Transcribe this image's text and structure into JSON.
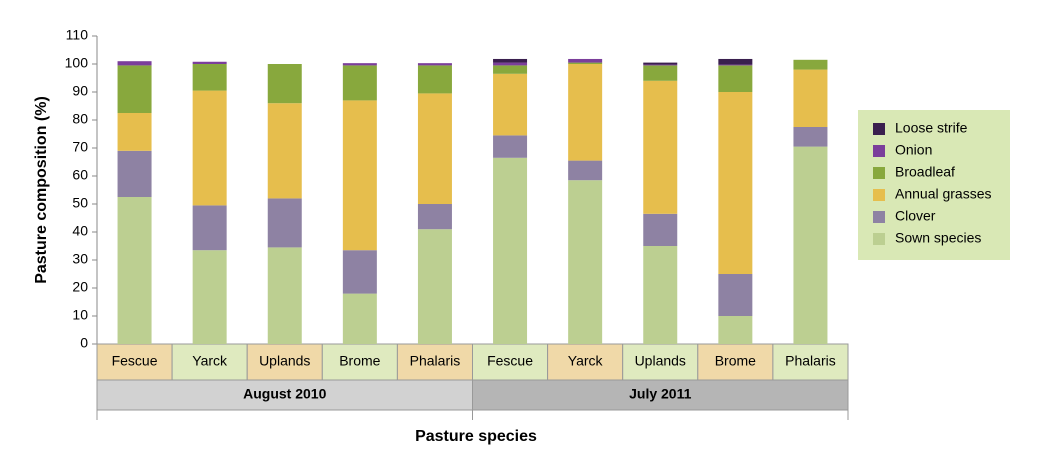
{
  "chart_data": {
    "type": "stacked-bar",
    "y_axis_label": "Pasture composition (%)",
    "x_axis_label": "Pasture species",
    "categories": [
      "Fescue",
      "Yarck",
      "Uplands",
      "Brome",
      "Phalaris",
      "Fescue",
      "Yarck",
      "Uplands",
      "Brome",
      "Phalaris"
    ],
    "category_colors": [
      "#f0d9a8",
      "#dfeabf",
      "#f0d9a8",
      "#dfeabf",
      "#f0d9a8",
      "#dfeabf",
      "#f0d9a8",
      "#dfeabf",
      "#f0d9a8",
      "#dfeabf"
    ],
    "groups": [
      {
        "name": "August 2010",
        "color": "#d2d2d2"
      },
      {
        "name": "July 2011",
        "color": "#b5b5b5"
      }
    ],
    "series": [
      {
        "name": "Sown species",
        "color": "#bccf91",
        "values": [
          52.5,
          33.5,
          34.5,
          18,
          41,
          66.5,
          58.5,
          35,
          10,
          70.5
        ]
      },
      {
        "name": "Clover",
        "color": "#8e82a3",
        "values": [
          16.5,
          16,
          17.5,
          15.5,
          9,
          8,
          7,
          11.5,
          15,
          7
        ]
      },
      {
        "name": "Annual grasses",
        "color": "#e6be4d",
        "values": [
          13.5,
          41,
          34,
          53.5,
          39.5,
          22,
          34.5,
          47.5,
          65,
          20.5
        ]
      },
      {
        "name": "Broadleaf",
        "color": "#88a83d",
        "values": [
          17,
          9.5,
          14,
          12.5,
          10,
          3,
          0.5,
          5.5,
          9.5,
          3.5
        ]
      },
      {
        "name": "Onion",
        "color": "#7b3e9b",
        "values": [
          1.5,
          0.8,
          0,
          0.8,
          0.8,
          1,
          1.3,
          0.3,
          0.3,
          0
        ]
      },
      {
        "name": "Loose strife",
        "color": "#3a1f4e",
        "values": [
          0,
          0,
          0,
          0,
          0,
          1.3,
          0,
          0.7,
          2,
          0
        ]
      }
    ],
    "ylim": [
      0,
      110
    ],
    "yticks": [
      0,
      10,
      20,
      30,
      40,
      50,
      60,
      70,
      80,
      90,
      100,
      110
    ],
    "legend": {
      "position": "right",
      "background": "#d9e8b5",
      "reversed": true
    }
  }
}
